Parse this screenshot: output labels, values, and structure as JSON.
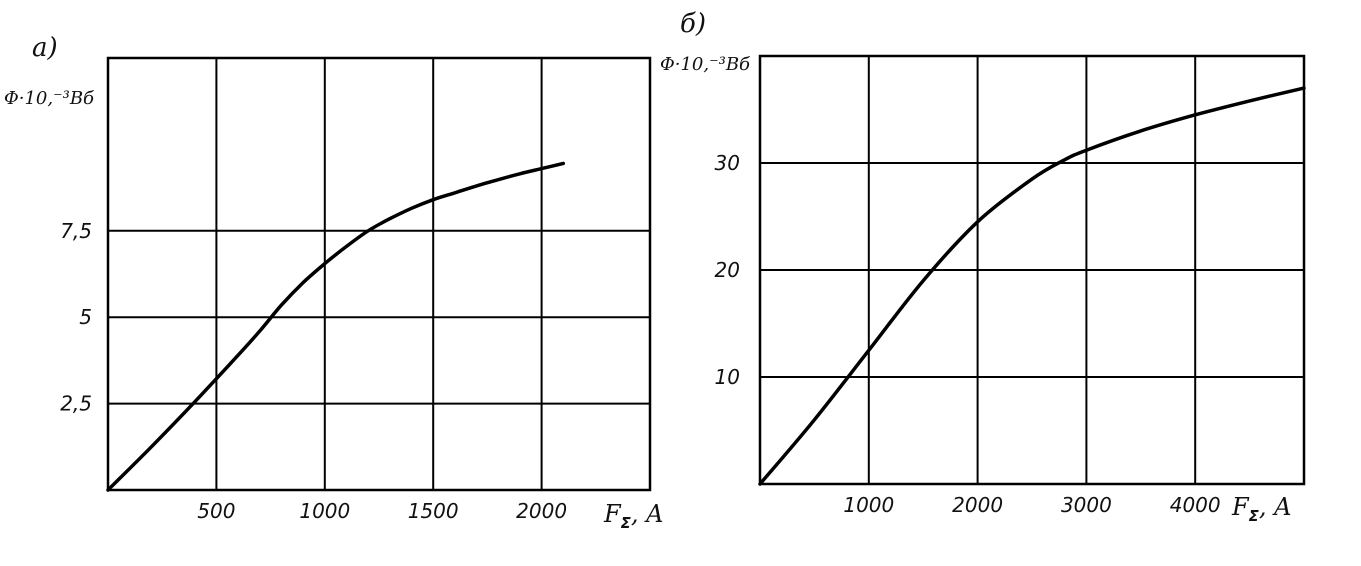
{
  "chart_data": [
    {
      "type": "line",
      "panel_label": "а)",
      "ylabel": "Φ·10,⁻³Вб",
      "xlabel": "FΣ, A",
      "xlabel_main": "F",
      "xlabel_sub": "Σ",
      "xlabel_unit": ", A",
      "xlim": [
        0,
        2500
      ],
      "ylim": [
        0,
        12.5
      ],
      "x_ticks": [
        500,
        1000,
        1500,
        2000
      ],
      "x_tick_labels": [
        "500",
        "1000",
        "1500",
        "2000"
      ],
      "y_ticks": [
        2.5,
        5,
        7.5
      ],
      "y_tick_labels": [
        "2,5",
        "5",
        "7,5"
      ],
      "grid": true,
      "x": [
        0,
        200,
        400,
        600,
        700,
        800,
        900,
        1000,
        1100,
        1200,
        1300,
        1400,
        1500,
        1600,
        1700,
        1800,
        1900,
        2000,
        2100
      ],
      "y": [
        0,
        1.25,
        2.55,
        3.9,
        4.6,
        5.35,
        6.0,
        6.55,
        7.05,
        7.5,
        7.85,
        8.15,
        8.4,
        8.6,
        8.8,
        8.98,
        9.15,
        9.3,
        9.45
      ]
    },
    {
      "type": "line",
      "panel_label": "б)",
      "ylabel": "Φ·10,⁻³Вб",
      "xlabel": "FΣ, A",
      "xlabel_main": "F",
      "xlabel_sub": "Σ",
      "xlabel_unit": ", A",
      "xlim": [
        0,
        5000
      ],
      "ylim": [
        0,
        40
      ],
      "x_ticks": [
        1000,
        2000,
        3000,
        4000
      ],
      "x_tick_labels": [
        "1000",
        "2000",
        "3000",
        "4000"
      ],
      "y_ticks": [
        10,
        20,
        30
      ],
      "y_tick_labels": [
        "10",
        "20",
        "30"
      ],
      "grid": true,
      "x": [
        0,
        500,
        1000,
        1500,
        2000,
        2500,
        2800,
        3000,
        3500,
        4000,
        4500,
        5000
      ],
      "y": [
        0,
        6.0,
        12.5,
        19.0,
        24.5,
        28.5,
        30.3,
        31.2,
        33.0,
        34.5,
        35.8,
        37.0
      ]
    }
  ]
}
